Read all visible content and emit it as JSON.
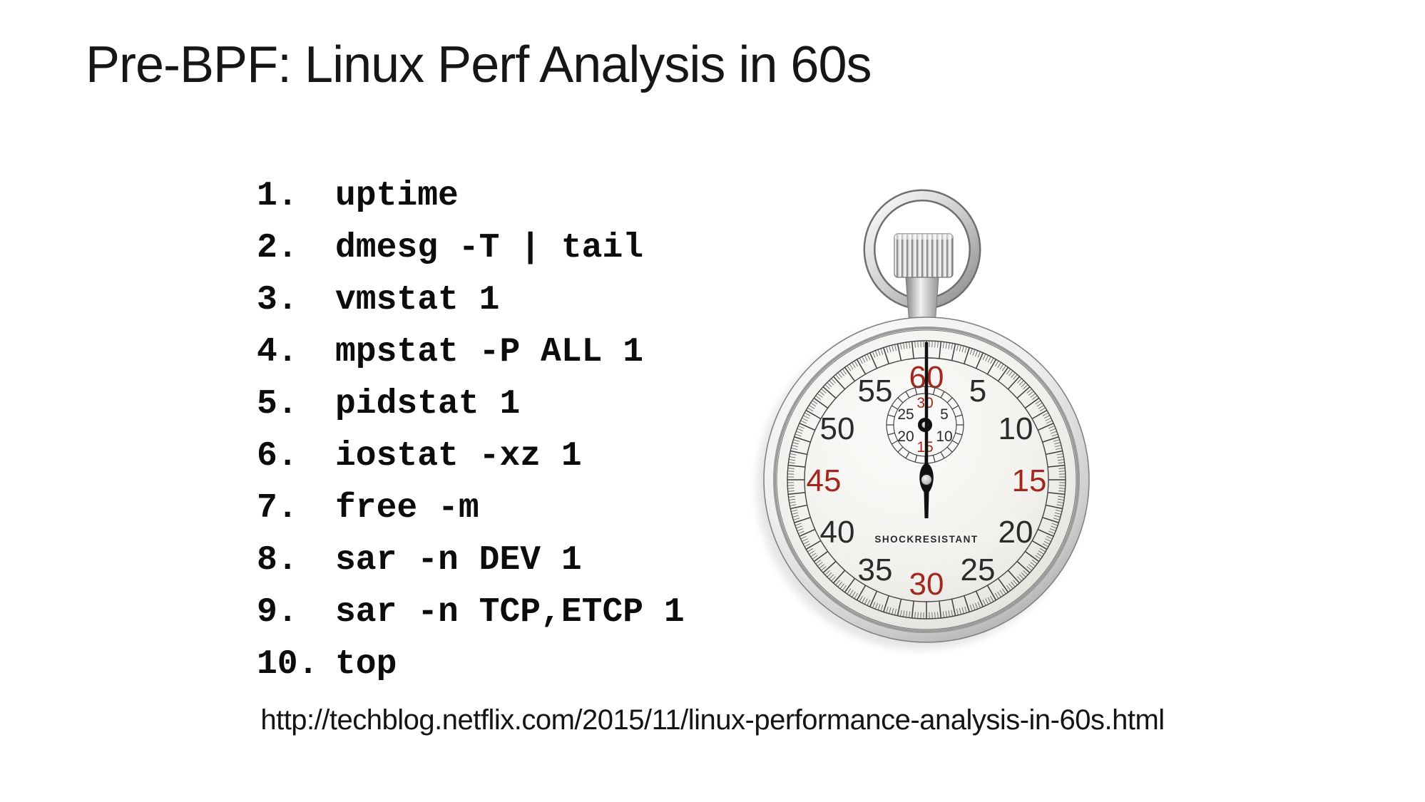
{
  "slide": {
    "title": "Pre-BPF: Linux Perf Analysis in 60s",
    "source_url": "http://techblog.netflix.com/2015/11/linux-performance-analysis-in-60s.html"
  },
  "commands": {
    "items": [
      {
        "num": "1.",
        "cmd": "uptime"
      },
      {
        "num": "2.",
        "cmd": "dmesg -T | tail"
      },
      {
        "num": "3.",
        "cmd": "vmstat 1"
      },
      {
        "num": "4.",
        "cmd": "mpstat -P ALL 1"
      },
      {
        "num": "5.",
        "cmd": "pidstat 1"
      },
      {
        "num": "6.",
        "cmd": "iostat -xz 1"
      },
      {
        "num": "7.",
        "cmd": "free -m"
      },
      {
        "num": "8.",
        "cmd": "sar -n DEV 1"
      },
      {
        "num": "9.",
        "cmd": "sar -n TCP,ETCP 1"
      },
      {
        "num": "10.",
        "cmd": "top"
      }
    ]
  },
  "stopwatch": {
    "accent_red": "#a2281f",
    "label": "SHOCKRESISTANT",
    "dial_numbers": [
      {
        "label": "60",
        "red": true
      },
      {
        "label": "5",
        "red": false
      },
      {
        "label": "10",
        "red": false
      },
      {
        "label": "15",
        "red": true
      },
      {
        "label": "20",
        "red": false
      },
      {
        "label": "25",
        "red": false
      },
      {
        "label": "30",
        "red": true
      },
      {
        "label": "35",
        "red": false
      },
      {
        "label": "40",
        "red": false
      },
      {
        "label": "45",
        "red": true
      },
      {
        "label": "50",
        "red": false
      },
      {
        "label": "55",
        "red": false
      }
    ],
    "subdial_numbers": [
      {
        "label": "30",
        "red": true
      },
      {
        "label": "5",
        "red": false
      },
      {
        "label": "10",
        "red": false
      },
      {
        "label": "15",
        "red": true
      },
      {
        "label": "20",
        "red": false
      },
      {
        "label": "25",
        "red": false
      }
    ]
  }
}
